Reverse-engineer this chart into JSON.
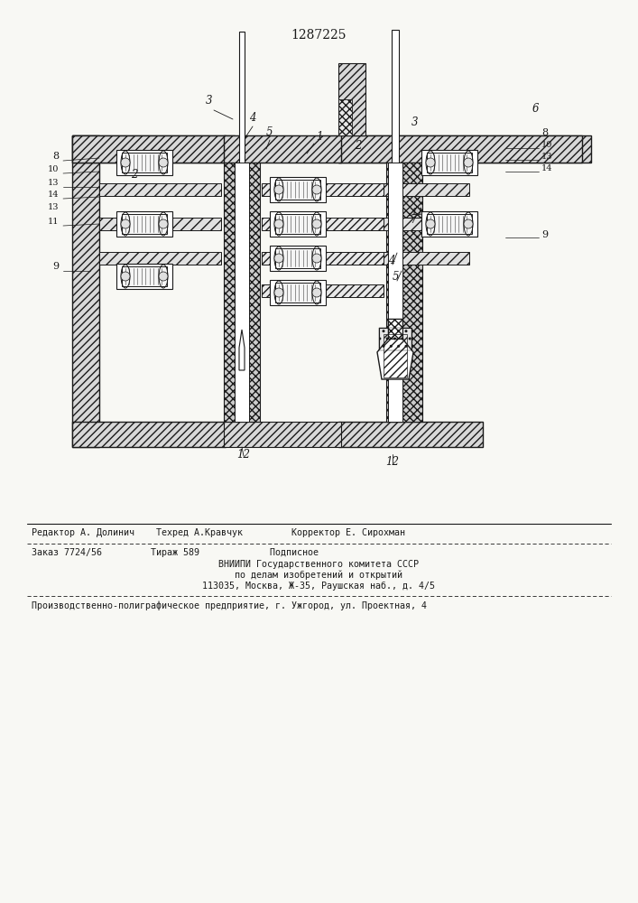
{
  "patent_number": "1287225",
  "bg_color": "#f8f8f4",
  "line_color": "#1a1a1a",
  "footer": {
    "editor_line": "Редактор А. Долинич    Техред А.Кравчук         Корректор Е. Сирохман",
    "order_line": "Заказ 7724/56         Тираж 589             Подписное",
    "org_line1": "ВНИИПИ Государственного комитета СССР",
    "org_line2": "по делам изобретений и открытий",
    "org_line3": "113035, Москва, Ж-35, Раушская наб., д. 4/5",
    "production_line": "Производственно-полиграфическое предприятие, г. Ужгород, ул. Проектная, 4"
  }
}
